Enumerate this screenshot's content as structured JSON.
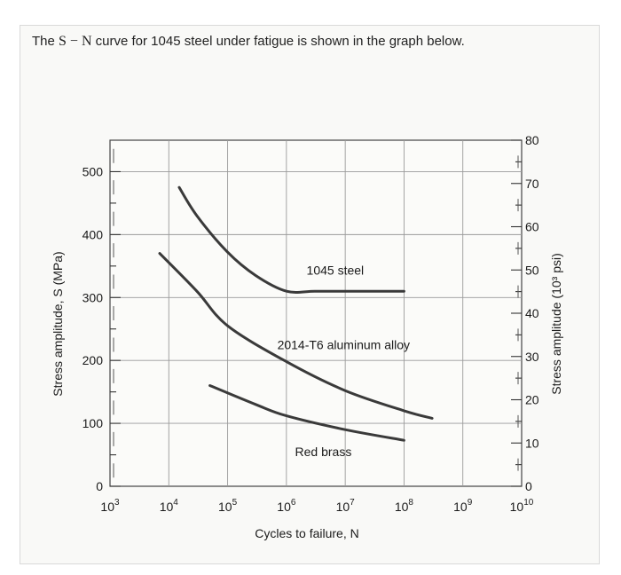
{
  "question": {
    "before": "The ",
    "math": "S − N",
    "after": " curve for 1045 steel under fatigue is shown in the graph below."
  },
  "chart_data": {
    "type": "line",
    "x_scale": "log10",
    "xlim": [
      1000,
      10000000000
    ],
    "ylim": [
      0,
      550
    ],
    "y2lim": [
      0,
      80
    ],
    "xlabel": "Cycles to failure, N",
    "ylabel": "Stress amplitude, S (MPa)",
    "y2label": "Stress amplitude (10³ psi)",
    "x_ticks": [
      {
        "base": "10",
        "exp": "3",
        "value": 1000
      },
      {
        "base": "10",
        "exp": "4",
        "value": 10000
      },
      {
        "base": "10",
        "exp": "5",
        "value": 100000
      },
      {
        "base": "10",
        "exp": "6",
        "value": 1000000
      },
      {
        "base": "10",
        "exp": "7",
        "value": 10000000
      },
      {
        "base": "10",
        "exp": "8",
        "value": 100000000
      },
      {
        "base": "10",
        "exp": "9",
        "value": 1000000000
      },
      {
        "base": "10",
        "exp": "10",
        "value": 10000000000
      }
    ],
    "y_ticks": [
      "0",
      "100",
      "200",
      "300",
      "400",
      "500"
    ],
    "y2_ticks": [
      "0",
      "10",
      "20",
      "30",
      "40",
      "50",
      "60",
      "70",
      "80"
    ],
    "grid": true,
    "series": [
      {
        "name": "1045 steel",
        "color": "#3a3a3a",
        "points": [
          [
            15000,
            475
          ],
          [
            30000,
            430
          ],
          [
            100000,
            372
          ],
          [
            300000,
            335
          ],
          [
            1000000,
            310
          ],
          [
            3000000,
            310
          ],
          [
            10000000,
            310
          ],
          [
            100000000,
            310
          ]
        ]
      },
      {
        "name": "2014-T6 aluminum alloy",
        "color": "#3a3a3a",
        "points": [
          [
            7000,
            370
          ],
          [
            30000,
            310
          ],
          [
            100000,
            255
          ],
          [
            1000000,
            198
          ],
          [
            10000000,
            152
          ],
          [
            100000000,
            120
          ],
          [
            300000000,
            108
          ]
        ]
      },
      {
        "name": "Red brass",
        "color": "#3a3a3a",
        "points": [
          [
            50000,
            160
          ],
          [
            300000,
            130
          ],
          [
            1000000,
            112
          ],
          [
            10000000,
            90
          ],
          [
            100000000,
            73
          ]
        ]
      }
    ]
  }
}
